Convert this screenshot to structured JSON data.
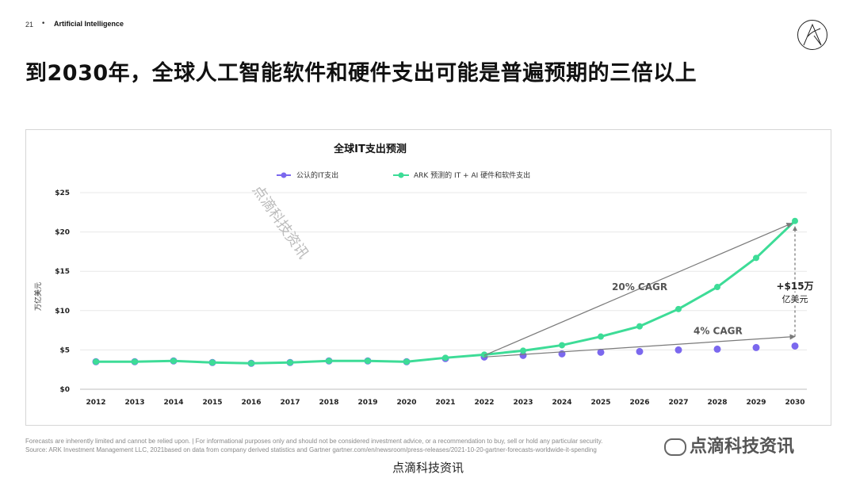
{
  "header": {
    "page_number": "21",
    "separator": "•",
    "section": "Artificial Intelligence",
    "headline": "到2030年，全球人工智能软件和硬件支出可能是普遍预期的三倍以上"
  },
  "footer": {
    "disclaimer": "Forecasts are inherently limited and cannot be relied upon. | For informational purposes only and should not be considered investment advice, or a recommendation to buy, sell or hold any particular security.",
    "source": "Source: ARK Investment Management LLC, 2021based on data from company derived statistics and Gartner gartner.com/en/newsroom/press-releases/2021-10-20-gartner-forecasts-worldwide-it-spending",
    "watermark_bottom": "点滴科技资讯",
    "watermark_right": "点滴科技资讯",
    "watermark_diagonal": "点滴科技资讯"
  },
  "chart_data": {
    "type": "line",
    "title": "全球IT支出预测",
    "ylabel": "万亿美元",
    "xlabel": "",
    "x": [
      "2012",
      "2013",
      "2014",
      "2015",
      "2016",
      "2017",
      "2018",
      "2019",
      "2020",
      "2021",
      "2022",
      "2023",
      "2024",
      "2025",
      "2026",
      "2027",
      "2028",
      "2029",
      "2030"
    ],
    "ylim": [
      0,
      25
    ],
    "yticks": [
      "$0",
      "$5",
      "$10",
      "$15",
      "$20",
      "$25"
    ],
    "grid": true,
    "legend_position": "top",
    "series": [
      {
        "name": "公认的IT支出",
        "style": "markers",
        "color": "#7b68ee",
        "values": [
          3.5,
          3.5,
          3.6,
          3.4,
          3.3,
          3.4,
          3.6,
          3.6,
          3.5,
          3.9,
          4.1,
          4.3,
          4.5,
          4.7,
          4.8,
          5.0,
          5.1,
          5.3,
          5.5
        ]
      },
      {
        "name": "ARK 预测的 IT + AI 硬件和软件支出",
        "style": "line",
        "color": "#3ddc97",
        "values": [
          3.5,
          3.5,
          3.6,
          3.4,
          3.3,
          3.4,
          3.6,
          3.6,
          3.5,
          4.0,
          4.4,
          4.9,
          5.6,
          6.7,
          8.0,
          10.2,
          13.0,
          16.7,
          21.4
        ]
      }
    ],
    "annotations": [
      {
        "text": "20% CAGR",
        "from": [
          "2022",
          4.3
        ],
        "to": [
          "2030",
          21.4
        ]
      },
      {
        "text": "4% CAGR",
        "from": [
          "2022",
          4.1
        ],
        "to": [
          "2030",
          6.7
        ]
      },
      {
        "text": "+$15万",
        "text2": "亿美元",
        "x": "2030",
        "range": [
          6.7,
          21.4
        ]
      }
    ]
  }
}
